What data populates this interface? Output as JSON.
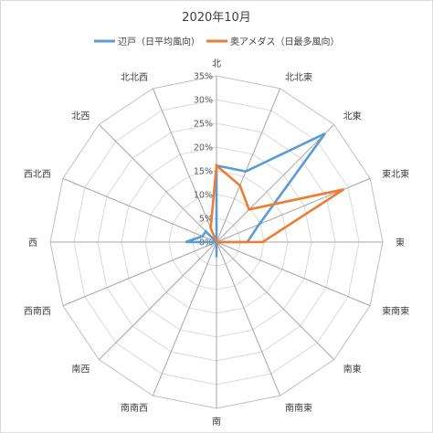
{
  "chart_data": {
    "type": "radar",
    "title": "2020年10月",
    "categories": [
      "北",
      "北北東",
      "北東",
      "東北東",
      "東",
      "東南東",
      "南東",
      "南南東",
      "南",
      "南南西",
      "南西",
      "西南西",
      "西",
      "西北西",
      "北西",
      "北北西"
    ],
    "r_ticks": [
      "0%",
      "5%",
      "10%",
      "15%",
      "20%",
      "25%",
      "30%",
      "35%"
    ],
    "r_max": 35,
    "grid": true,
    "legend_position": "top",
    "series": [
      {
        "name": "辺戸（日平均風向）",
        "color": "#5b9bd5",
        "values": [
          16.1,
          16.1,
          32.3,
          9.7,
          6.5,
          0,
          0,
          0,
          3.2,
          0,
          0,
          0,
          6.5,
          3.2,
          3.2,
          0
        ]
      },
      {
        "name": "奥アメダス（日最多風向）",
        "color": "#ed7d31",
        "values": [
          16.1,
          12.9,
          9.7,
          29.0,
          9.7,
          0,
          0,
          0,
          0,
          0,
          0,
          0,
          0,
          0,
          0,
          3.2
        ]
      }
    ]
  }
}
